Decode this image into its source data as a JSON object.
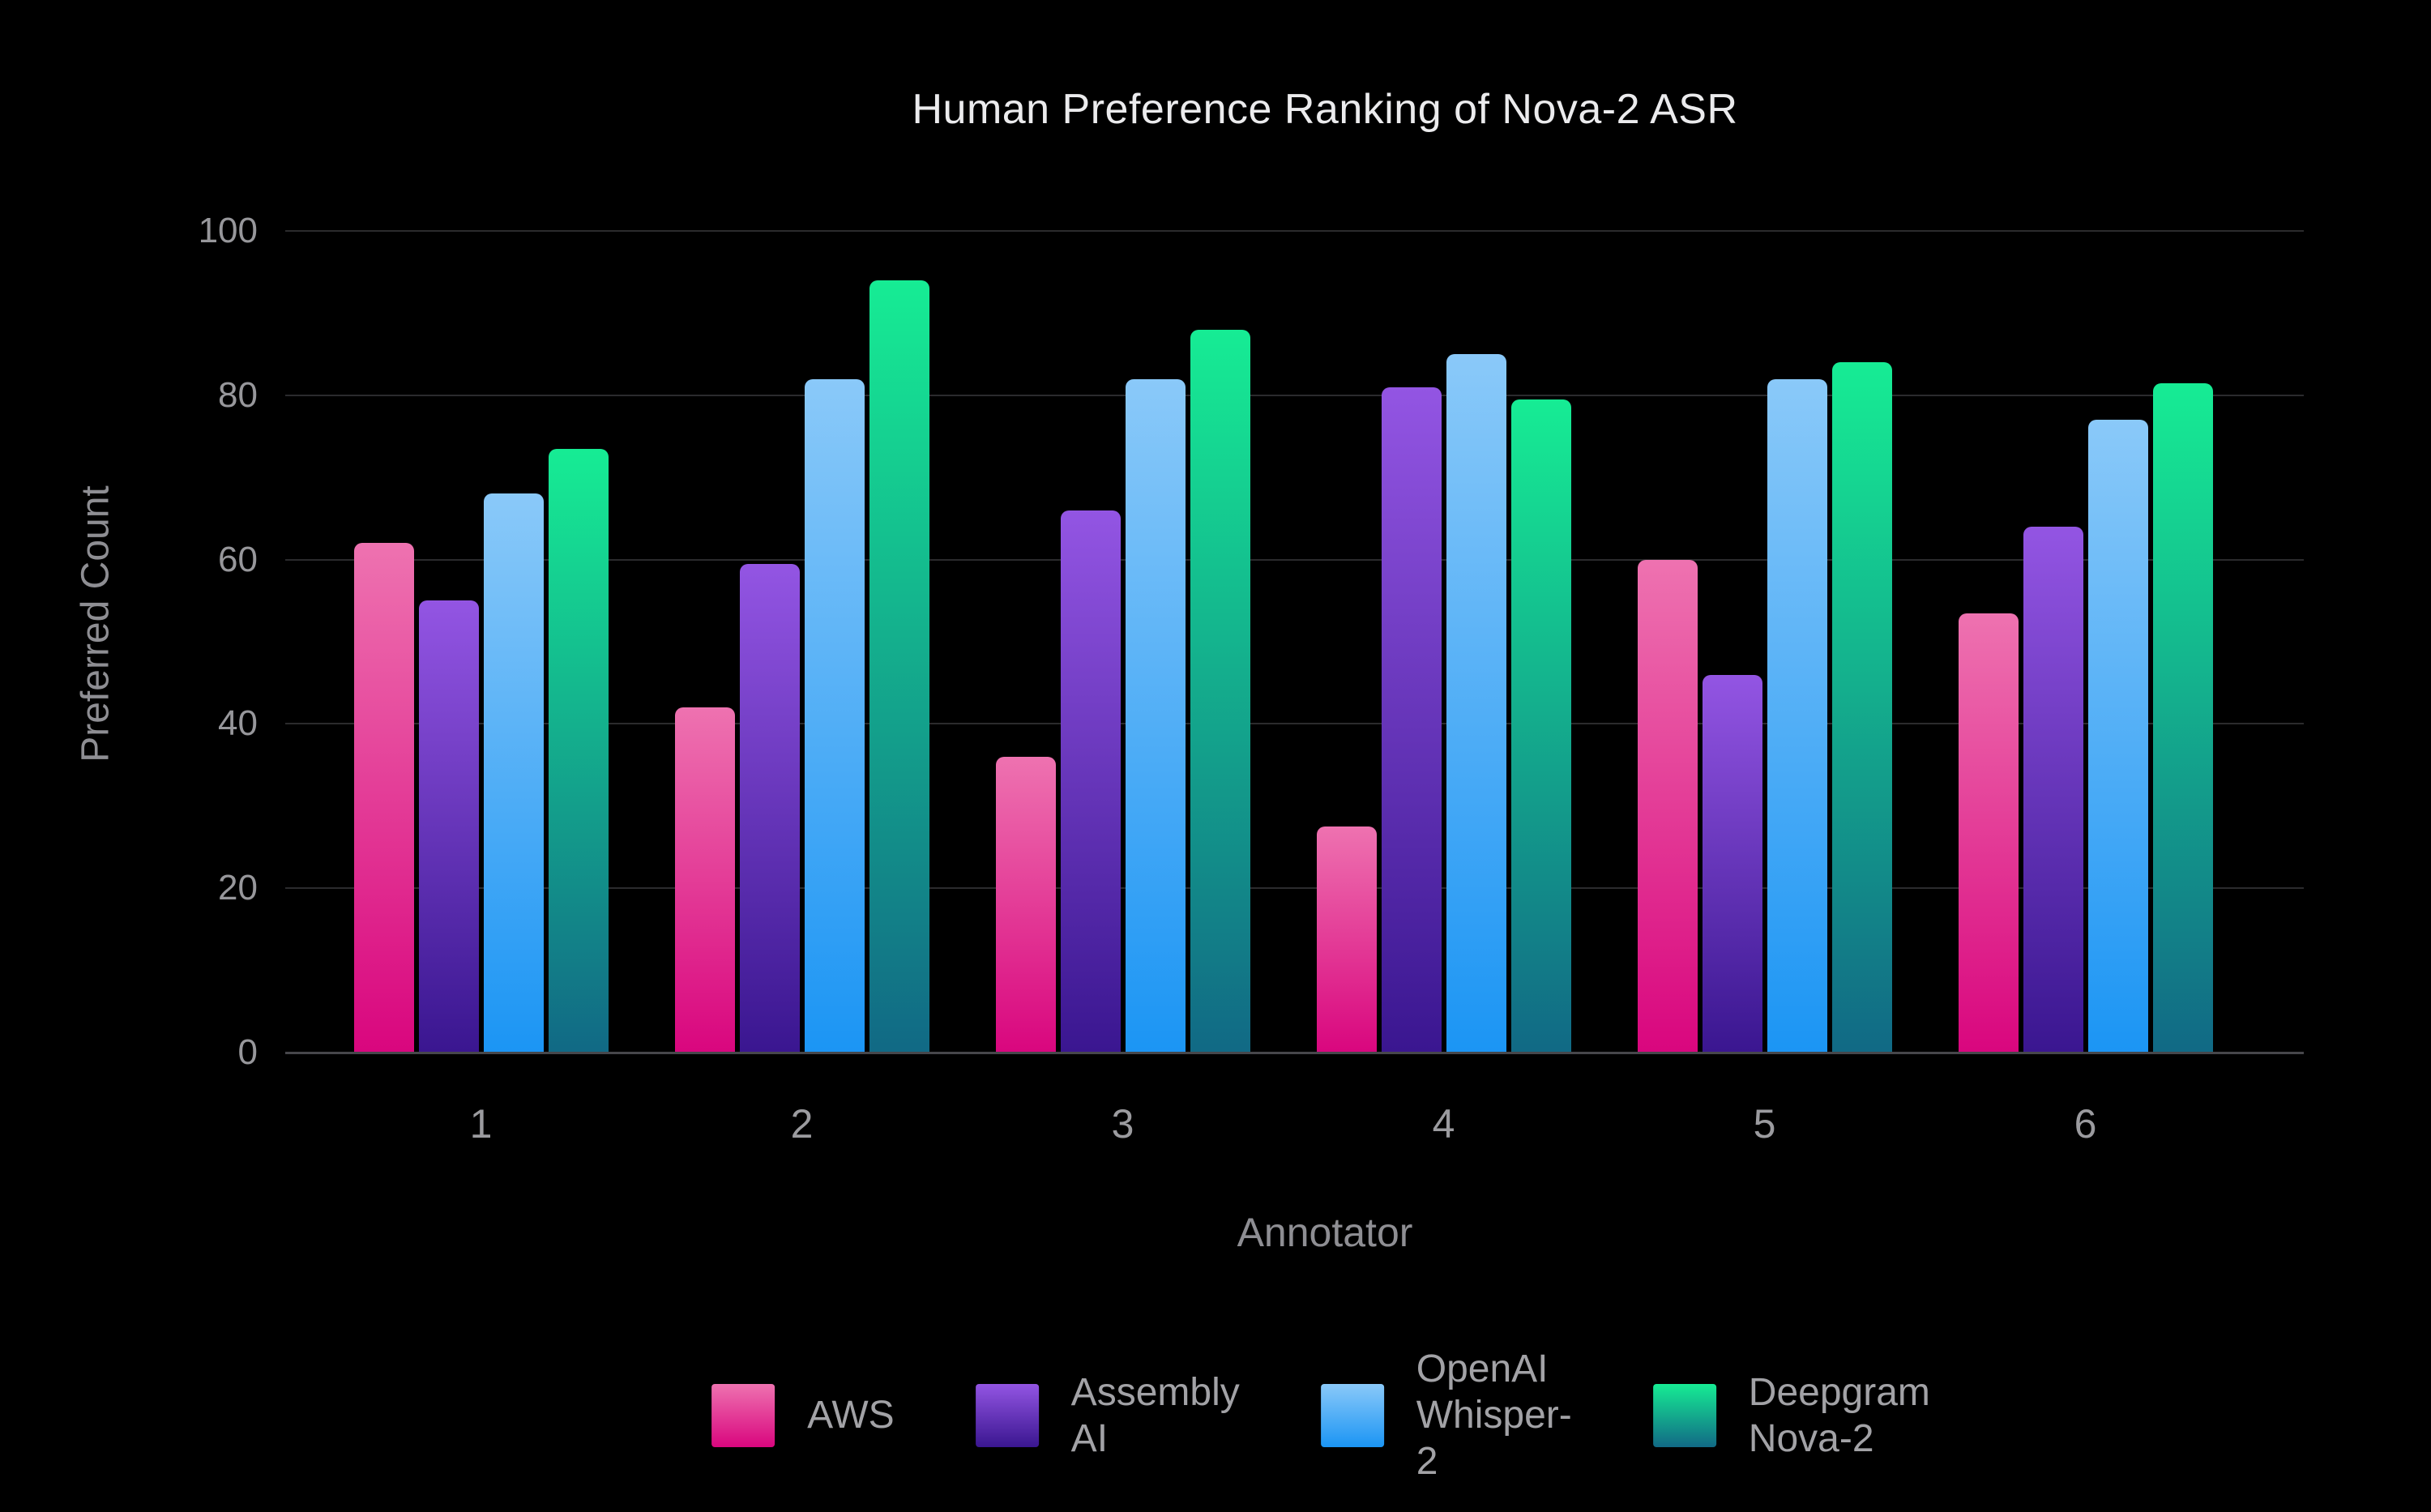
{
  "title": "Human Preference Ranking of Nova-2 ASR",
  "chart_data": {
    "type": "bar",
    "title": "Human Preference Ranking of Nova-2 ASR",
    "xlabel": "Annotator",
    "ylabel": "Preferred Count",
    "categories": [
      "1",
      "2",
      "3",
      "4",
      "5",
      "6"
    ],
    "y_ticks": [
      0,
      20,
      40,
      60,
      80,
      100
    ],
    "ylim": [
      0,
      100
    ],
    "grid": true,
    "legend_position": "bottom",
    "background": "#000000",
    "series": [
      {
        "name": "AWS",
        "label_lines": [
          "AWS"
        ],
        "color_top": "#EE72B0",
        "color_bottom": "#D9067E",
        "values": [
          62,
          42,
          36,
          27.5,
          60,
          53.5
        ]
      },
      {
        "name": "Assembly AI",
        "label_lines": [
          "Assembly AI"
        ],
        "color_top": "#9355E3",
        "color_bottom": "#3A1690",
        "values": [
          55,
          59.5,
          66,
          81,
          46,
          64
        ]
      },
      {
        "name": "OpenAI Whisper-2",
        "label_lines": [
          "OpenAI",
          "Whisper-2"
        ],
        "color_top": "#8AC9F9",
        "color_bottom": "#1B95F4",
        "values": [
          68,
          82,
          82,
          85,
          82,
          77
        ]
      },
      {
        "name": "Deepgram Nova-2",
        "label_lines": [
          "Deepgram",
          "Nova-2"
        ],
        "color_top": "#16EC94",
        "color_bottom": "#116985",
        "values": [
          73.5,
          94,
          88,
          79.5,
          84,
          81.5
        ]
      }
    ],
    "colors": {
      "gridline": "#2b2b2d",
      "axis_line": "#47474b",
      "tick_label": "#97979b",
      "axis_title": "#8e8e93",
      "title": "#ebebed",
      "legend_label": "#a2a2a6"
    }
  }
}
